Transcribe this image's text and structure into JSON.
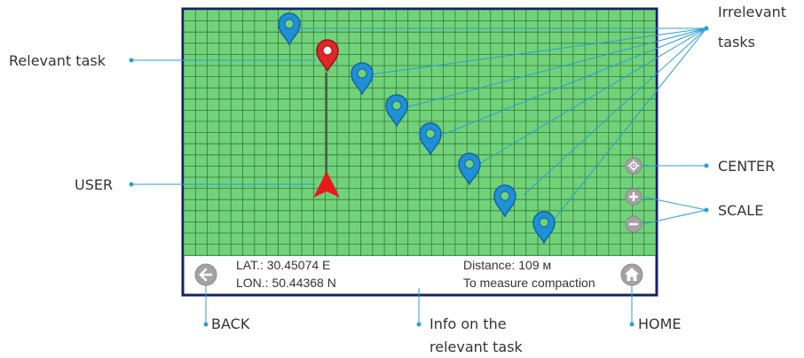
{
  "callouts": {
    "relevant_task": "Relevant task",
    "user": "USER",
    "irrelevant_line1": "Irrelevant",
    "irrelevant_line2": "tasks",
    "center": "CENTER",
    "scale": "SCALE",
    "back": "BACK",
    "info_line1": "Info on the",
    "info_line2": "relevant task",
    "home": "HOME"
  },
  "info_bar": {
    "lat": "LAT.:  30.45074 E",
    "lon": "LON.: 50.44368 N",
    "distance": "Distance: 109 м",
    "task": "To measure compaction"
  },
  "icons": {
    "back": "arrow-left-icon",
    "home": "house-icon",
    "center": "crosshair-icon",
    "zoom_in": "plus-icon",
    "zoom_out": "minus-icon",
    "user": "triangle-arrow-icon",
    "pin": "map-pin-icon"
  },
  "colors": {
    "map_green": "#72d27a",
    "grid_line": "#2f7a3a",
    "frame": "#16206b",
    "relevant_pin": "#e0262b",
    "irrelevant_pin": "#1e90d6",
    "callout_line": "#2a9fd6",
    "user_marker": "#e8191b",
    "button_grey": "#a3a3a3"
  }
}
